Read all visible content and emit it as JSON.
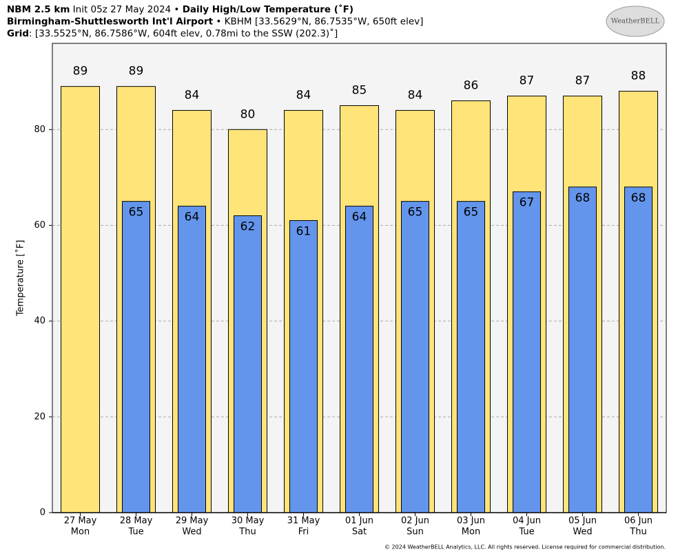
{
  "chart_data": {
    "type": "bar",
    "header": [
      [
        {
          "text": "NBM 2.5 km",
          "bold": true
        },
        {
          "text": " Init 05z 27 May 2024 • ",
          "bold": false
        },
        {
          "text": "Daily High/Low Temperature (˚F)",
          "bold": true
        }
      ],
      [
        {
          "text": "Birmingham-Shuttlesworth Int'l Airport",
          "bold": true
        },
        {
          "text": " • KBHM [33.5629°N, 86.7535°W, 650ft elev]",
          "bold": false
        }
      ],
      [
        {
          "text": "Grid",
          "bold": true
        },
        {
          "text": ": [33.5525°N, 86.7586°W, 604ft elev, 0.78mi to the SSW (202.3)˚]",
          "bold": false
        }
      ]
    ],
    "logo": "WeatherBELL",
    "ylabel": "Temperature [˚F]",
    "footer": "© 2024 WeatherBELL Analytics, LLC. All rights reserved. License required for commercial distribution.",
    "categories": [
      "27 May",
      "28 May",
      "29 May",
      "30 May",
      "31 May",
      "01 Jun",
      "02 Jun",
      "03 Jun",
      "04 Jun",
      "05 Jun",
      "06 Jun"
    ],
    "weekdays": [
      "Mon",
      "Tue",
      "Wed",
      "Thu",
      "Fri",
      "Sat",
      "Sun",
      "Mon",
      "Tue",
      "Wed",
      "Thu"
    ],
    "series": [
      {
        "color": "#ffe47a",
        "values": [
          89,
          89,
          84,
          80,
          84,
          85,
          84,
          86,
          87,
          87,
          88
        ]
      },
      {
        "color": "#6495ed",
        "values": [
          null,
          65,
          64,
          62,
          61,
          64,
          65,
          65,
          67,
          68,
          68
        ]
      }
    ],
    "ylim": [
      0,
      98
    ],
    "yticks": [
      0,
      20,
      40,
      60,
      80
    ],
    "grid": true
  }
}
